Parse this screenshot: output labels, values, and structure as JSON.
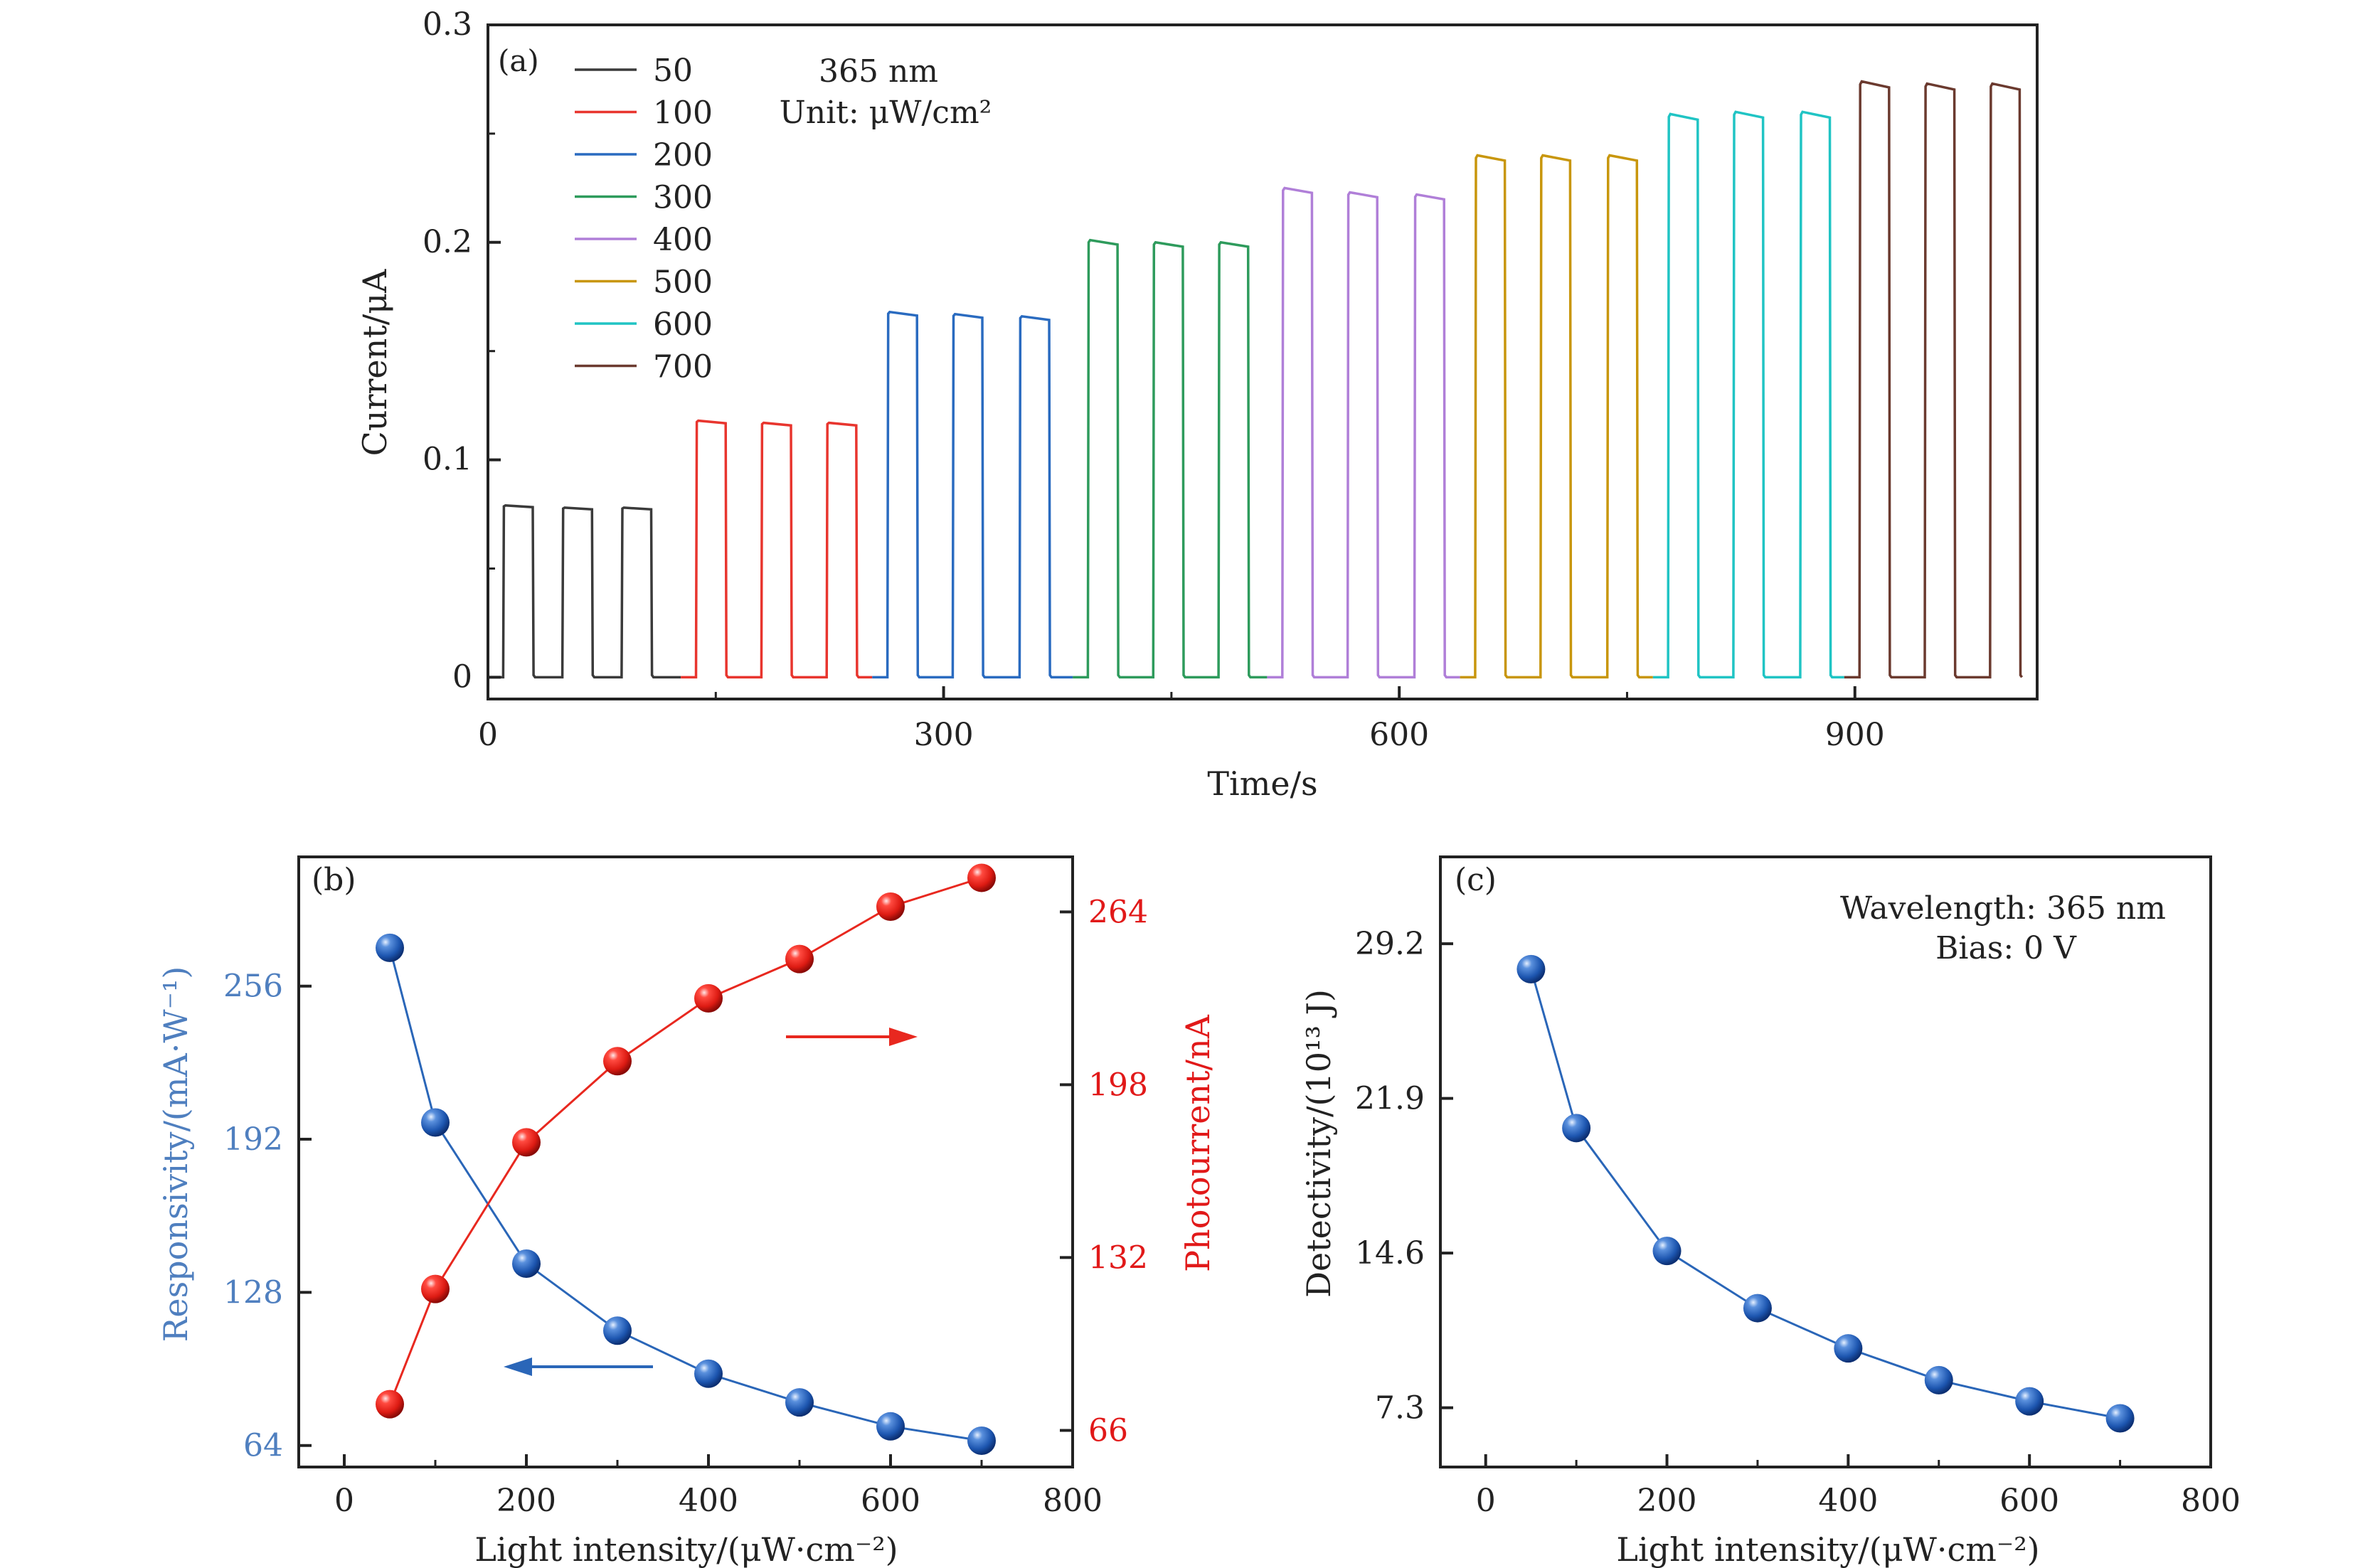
{
  "colors": {
    "axis": "#222222",
    "blue": "#2a66b8",
    "red": "#e8281f",
    "responsivity_axis": "#4f7fbf",
    "photocurrent_axis": "#e11919"
  },
  "panel_a": {
    "panel_label": "(a)",
    "annotation_line1": "365 nm",
    "annotation_line2": "Unit: μW/cm²"
  },
  "panel_c": {
    "panel_label": "(c)",
    "annotation_line1": "Wavelength: 365 nm",
    "annotation_line2": "Bias: 0 V"
  },
  "panel_b": {
    "panel_label": "(b)"
  },
  "chart_data": [
    {
      "type": "line",
      "panel": "a",
      "xlabel": "Time/s",
      "ylabel": "Current/μA",
      "xlim": [
        0,
        1020
      ],
      "ylim": [
        -0.01,
        0.3
      ],
      "xticks": [
        0,
        300,
        600,
        900
      ],
      "yticks": [
        0,
        0.1,
        0.2,
        0.3
      ],
      "ytick_labels": [
        "0",
        "0.1",
        "0.2",
        "0.3"
      ],
      "legend_placement": "top-left",
      "pulse_on_duration_s": 20,
      "pulse_off_duration_s": 20,
      "pulses_per_series": 3,
      "series": [
        {
          "name": "50",
          "color": "#3a3a3a",
          "t_start": 0,
          "t_end": 127,
          "on_times": [
            10,
            49,
            88
          ],
          "on_currents": [
            0.079,
            0.078,
            0.078
          ]
        },
        {
          "name": "100",
          "color": "#e8352e",
          "t_start": 127,
          "t_end": 253,
          "on_times": [
            137,
            180,
            223
          ],
          "on_currents": [
            0.118,
            0.117,
            0.117
          ]
        },
        {
          "name": "200",
          "color": "#2a6bc0",
          "t_start": 253,
          "t_end": 385,
          "on_times": [
            263,
            306,
            350
          ],
          "on_currents": [
            0.168,
            0.167,
            0.166
          ]
        },
        {
          "name": "300",
          "color": "#2e9b5c",
          "t_start": 385,
          "t_end": 513,
          "on_times": [
            395,
            438,
            481
          ],
          "on_currents": [
            0.201,
            0.2,
            0.2
          ]
        },
        {
          "name": "400",
          "color": "#b07fd8",
          "t_start": 513,
          "t_end": 640,
          "on_times": [
            523,
            566,
            610
          ],
          "on_currents": [
            0.225,
            0.223,
            0.222
          ]
        },
        {
          "name": "500",
          "color": "#c8960c",
          "t_start": 640,
          "t_end": 767,
          "on_times": [
            650,
            693,
            737
          ],
          "on_currents": [
            0.24,
            0.24,
            0.24
          ]
        },
        {
          "name": "600",
          "color": "#20c4c4",
          "t_start": 767,
          "t_end": 893,
          "on_times": [
            777,
            820,
            864
          ],
          "on_currents": [
            0.259,
            0.26,
            0.26
          ]
        },
        {
          "name": "700",
          "color": "#6b3a2f",
          "t_start": 893,
          "t_end": 1010,
          "on_times": [
            903,
            946,
            989
          ],
          "on_currents": [
            0.274,
            0.273,
            0.273
          ]
        }
      ]
    },
    {
      "type": "line",
      "panel": "b",
      "xlabel": "Light intensity/(μW·cm⁻²)",
      "ylabel_left": "Responsivity/(mA·W⁻¹)",
      "ylabel_right": "Photourrent/nA",
      "xlim": [
        -50,
        800
      ],
      "xticks": [
        0,
        200,
        400,
        600,
        800
      ],
      "ylim_left": [
        55,
        310
      ],
      "yticks_left": [
        64,
        128,
        192,
        256
      ],
      "ylim_right": [
        52,
        285
      ],
      "yticks_right": [
        66,
        132,
        198,
        264
      ],
      "x": [
        50,
        100,
        200,
        300,
        400,
        500,
        600,
        700
      ],
      "series": [
        {
          "axis": "left",
          "color": "#2a66b8",
          "values": [
            272,
            199,
            140,
            112,
            94,
            82,
            72,
            66
          ]
        },
        {
          "axis": "right",
          "color": "#e8281f",
          "values": [
            76,
            120,
            176,
            207,
            231,
            246,
            266,
            277
          ]
        }
      ]
    },
    {
      "type": "line",
      "panel": "c",
      "xlabel": "Light intensity/(μW·cm⁻²)",
      "ylabel": "Detectivity/(10¹³ J)",
      "xlim": [
        -50,
        800
      ],
      "xticks": [
        0,
        200,
        400,
        600,
        800
      ],
      "ylim": [
        4.5,
        33.3
      ],
      "yticks": [
        7.3,
        14.6,
        21.9,
        29.2
      ],
      "ytick_labels": [
        "7.3",
        "14.6",
        "21.9",
        "29.2"
      ],
      "x": [
        50,
        100,
        200,
        300,
        400,
        500,
        600,
        700
      ],
      "series": [
        {
          "color": "#2a66b8",
          "values": [
            28.0,
            20.5,
            14.7,
            12.0,
            10.1,
            8.6,
            7.6,
            6.8
          ]
        }
      ]
    }
  ]
}
